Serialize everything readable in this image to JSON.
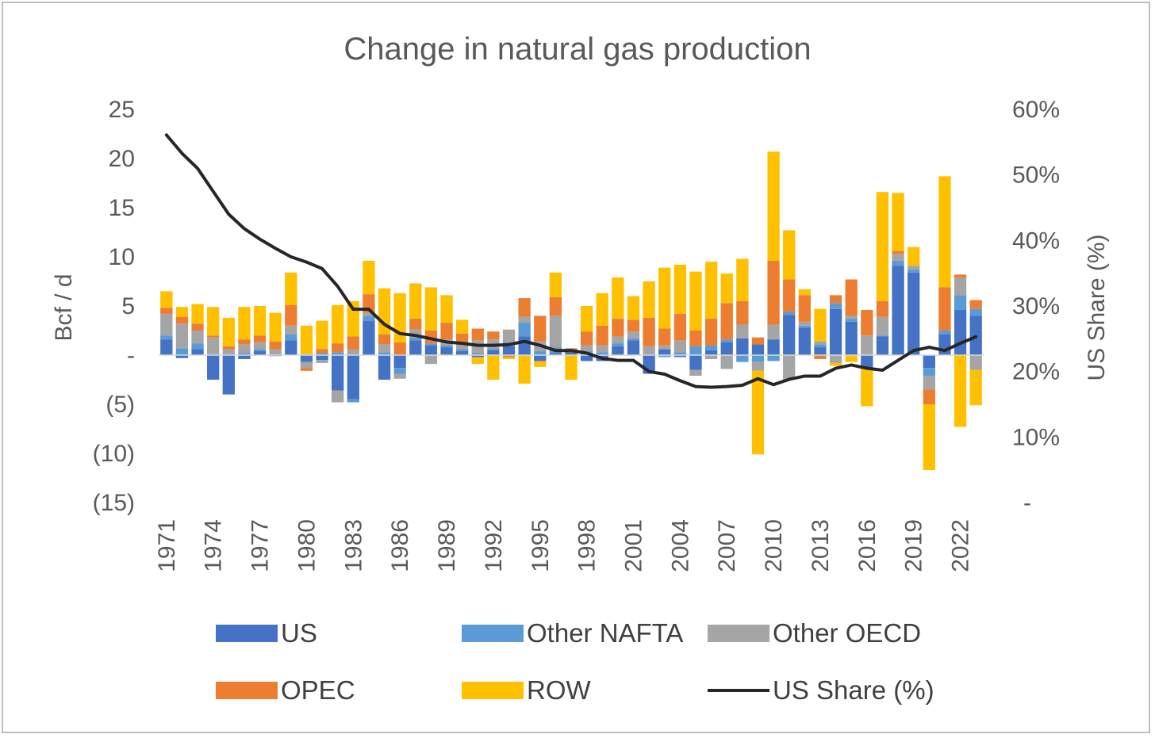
{
  "chart_data": {
    "type": "bar",
    "title": "Change in natural gas production",
    "ylabel": "Bcf / d",
    "y2label": "US Share (%)",
    "ylim": [
      -15,
      25
    ],
    "y2lim": [
      0,
      0.6
    ],
    "y_ticks": [
      {
        "value": 25,
        "label": "25"
      },
      {
        "value": 20,
        "label": "20"
      },
      {
        "value": 15,
        "label": "15"
      },
      {
        "value": 10,
        "label": "10"
      },
      {
        "value": 5,
        "label": "5"
      },
      {
        "value": 0,
        "label": "-"
      },
      {
        "value": -5,
        "label": "(5)"
      },
      {
        "value": -10,
        "label": "(10)"
      },
      {
        "value": -15,
        "label": "(15)"
      }
    ],
    "y2_ticks": [
      {
        "value": 0.6,
        "label": "60%"
      },
      {
        "value": 0.5,
        "label": "50%"
      },
      {
        "value": 0.4,
        "label": "40%"
      },
      {
        "value": 0.3,
        "label": "30%"
      },
      {
        "value": 0.2,
        "label": "20%"
      },
      {
        "value": 0.1,
        "label": "10%"
      },
      {
        "value": 0.0,
        "label": "-"
      }
    ],
    "categories": [
      1971,
      1972,
      1973,
      1974,
      1975,
      1976,
      1977,
      1978,
      1979,
      1980,
      1981,
      1982,
      1983,
      1984,
      1985,
      1986,
      1987,
      1988,
      1989,
      1990,
      1991,
      1992,
      1993,
      1994,
      1995,
      1996,
      1997,
      1998,
      1999,
      2000,
      2001,
      2002,
      2003,
      2004,
      2005,
      2006,
      2007,
      2008,
      2009,
      2010,
      2011,
      2012,
      2013,
      2014,
      2015,
      2016,
      2017,
      2018,
      2019,
      2020,
      2021,
      2022,
      2023
    ],
    "x_tick_labels": [
      "1971",
      "1974",
      "1977",
      "1980",
      "1983",
      "1986",
      "1989",
      "1992",
      "1995",
      "1998",
      "2001",
      "2004",
      "2007",
      "2010",
      "2013",
      "2016",
      "2019",
      "2022"
    ],
    "series": [
      {
        "name": "US",
        "color": "#4472C4",
        "values": [
          1.6,
          -0.3,
          0.6,
          -2.5,
          -4.0,
          -0.4,
          0.4,
          -0.1,
          1.5,
          -0.7,
          -0.5,
          -3.6,
          -4.5,
          3.5,
          -2.5,
          -1.3,
          1.5,
          1.0,
          0.8,
          0.4,
          -0.2,
          0.5,
          0.9,
          1.9,
          -0.6,
          0.2,
          0.3,
          -0.6,
          -0.6,
          0.9,
          1.5,
          -1.9,
          0.6,
          -0.2,
          -1.5,
          0.5,
          1.3,
          1.7,
          1.1,
          1.6,
          4.1,
          2.8,
          0.8,
          4.7,
          3.4,
          -1.3,
          1.9,
          9.1,
          8.4,
          -1.3,
          2.1,
          4.6,
          4.0
        ]
      },
      {
        "name": "Other NAFTA",
        "color": "#5B9BD5",
        "values": [
          0.4,
          0.7,
          0.6,
          0.1,
          0.0,
          0.2,
          0.2,
          0.0,
          0.6,
          0.1,
          0.2,
          0.3,
          -0.3,
          0.5,
          0.3,
          -0.6,
          0.3,
          0.2,
          0.2,
          0.2,
          0.2,
          0.2,
          0.4,
          1.4,
          0.4,
          0.6,
          0.1,
          0.4,
          0.3,
          0.3,
          0.2,
          0.1,
          -0.2,
          0.3,
          0.9,
          0.5,
          0.3,
          -0.7,
          -0.7,
          -0.6,
          0.3,
          0.2,
          0.3,
          0.6,
          0.3,
          0.0,
          0.1,
          0.5,
          0.3,
          -0.8,
          0.4,
          1.5,
          0.7
        ]
      },
      {
        "name": "Other OECD",
        "color": "#A5A5A5",
        "values": [
          2.2,
          2.5,
          1.3,
          1.7,
          0.6,
          0.9,
          0.7,
          0.6,
          0.9,
          -0.6,
          -0.3,
          -1.2,
          0.6,
          0.3,
          0.8,
          -0.5,
          0.8,
          -0.9,
          0.6,
          0.6,
          1.3,
          0.9,
          1.3,
          0.6,
          1.0,
          3.2,
          0.1,
          0.6,
          0.7,
          0.7,
          0.7,
          0.8,
          0.4,
          1.2,
          -0.6,
          -0.4,
          -1.4,
          1.4,
          -0.9,
          1.5,
          -2.5,
          0.4,
          0.3,
          -0.8,
          0.3,
          2.0,
          1.9,
          0.7,
          0.4,
          -1.4,
          0.0,
          1.8,
          -1.5
        ]
      },
      {
        "name": "OPEC",
        "color": "#ED7D31",
        "values": [
          0.6,
          0.7,
          0.7,
          0.2,
          0.3,
          0.5,
          0.7,
          0.8,
          2.1,
          -0.3,
          0.4,
          0.9,
          1.3,
          1.9,
          1.0,
          1.3,
          1.1,
          1.3,
          1.7,
          1.0,
          1.2,
          0.8,
          -0.2,
          1.9,
          2.6,
          1.9,
          0.2,
          1.4,
          2.0,
          1.8,
          1.2,
          2.9,
          1.7,
          2.7,
          1.6,
          2.7,
          3.7,
          2.4,
          0.7,
          6.5,
          3.3,
          2.7,
          -0.4,
          0.8,
          3.7,
          2.6,
          1.6,
          0.3,
          0.0,
          -1.5,
          4.4,
          0.3,
          0.9
        ]
      },
      {
        "name": "ROW",
        "color": "#FFC000",
        "values": [
          1.7,
          1.0,
          2.0,
          2.9,
          2.9,
          3.3,
          3.0,
          2.9,
          3.3,
          2.9,
          2.9,
          3.9,
          3.6,
          3.4,
          4.7,
          5.0,
          3.6,
          4.4,
          2.8,
          1.4,
          -0.7,
          -2.5,
          -0.2,
          -2.9,
          -0.6,
          2.5,
          -2.5,
          2.6,
          3.3,
          4.2,
          2.4,
          3.7,
          6.2,
          5.0,
          6.0,
          5.8,
          3.0,
          4.3,
          -8.5,
          11.1,
          5.0,
          0.6,
          3.3,
          -0.3,
          -0.7,
          -3.9,
          11.1,
          5.9,
          1.9,
          -6.7,
          11.3,
          -7.3,
          -3.6
        ]
      }
    ],
    "line": {
      "name": "US Share (%)",
      "color": "#262626",
      "values": [
        0.561,
        0.533,
        0.51,
        0.475,
        0.44,
        0.418,
        0.402,
        0.388,
        0.375,
        0.367,
        0.357,
        0.33,
        0.295,
        0.295,
        0.272,
        0.258,
        0.255,
        0.25,
        0.245,
        0.243,
        0.24,
        0.24,
        0.241,
        0.246,
        0.24,
        0.232,
        0.232,
        0.228,
        0.22,
        0.217,
        0.217,
        0.2,
        0.196,
        0.186,
        0.177,
        0.176,
        0.177,
        0.179,
        0.189,
        0.18,
        0.188,
        0.193,
        0.193,
        0.205,
        0.21,
        0.205,
        0.202,
        0.217,
        0.232,
        0.237,
        0.232,
        0.243,
        0.253
      ]
    },
    "grid": false,
    "legend_position": "bottom"
  }
}
